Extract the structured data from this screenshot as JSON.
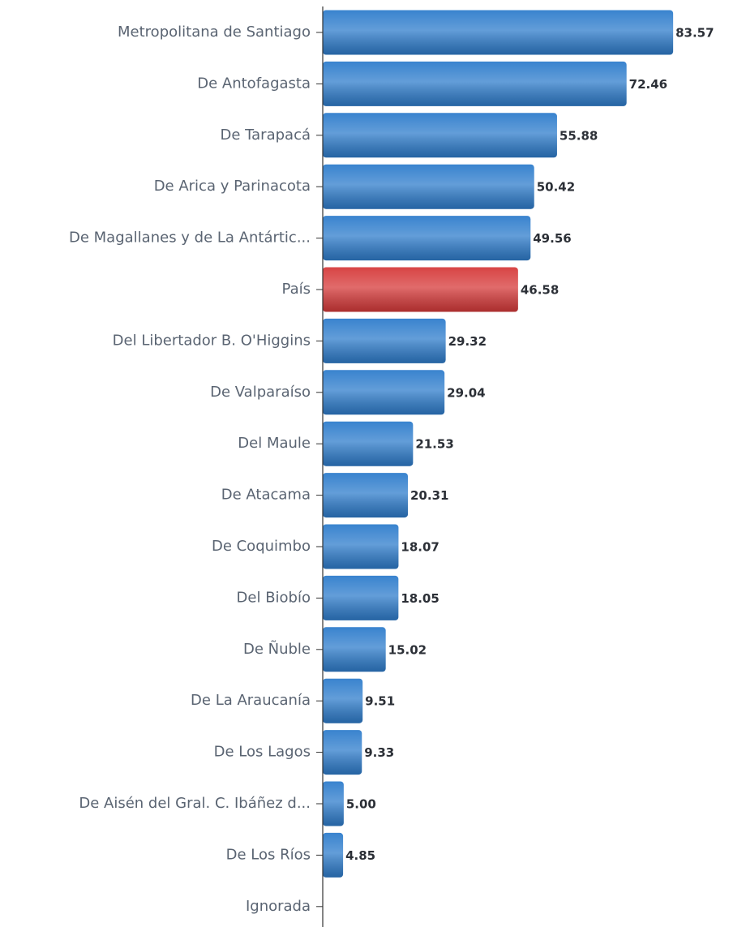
{
  "chart_data": {
    "type": "barh",
    "categories": [
      "Metropolitana de Santiago",
      "De Antofagasta",
      "De Tarapacá",
      "De Arica y Parinacota",
      "De Magallanes y de La Antártic...",
      "País",
      "Del Libertador B. O'Higgins",
      "De Valparaíso",
      "Del Maule",
      "De Atacama",
      "De Coquimbo",
      "Del Biobío",
      "De Ñuble",
      "De La Araucanía",
      "De Los Lagos",
      "De Aisén del Gral. C. Ibáñez d...",
      "De Los Ríos",
      "Ignorada"
    ],
    "values": [
      83.57,
      72.46,
      55.88,
      50.42,
      49.56,
      46.58,
      29.32,
      29.04,
      21.53,
      20.31,
      18.07,
      18.05,
      15.02,
      9.51,
      9.33,
      5,
      4.85,
      null
    ],
    "value_labels": [
      "83.57",
      "72.46",
      "55.88",
      "50.42",
      "49.56",
      "46.58",
      "29.32",
      "29.04",
      "21.53",
      "20.31",
      "18.07",
      "18.05",
      "15.02",
      "9.51",
      "9.33",
      "5.00",
      "4.85",
      null
    ],
    "colors": [
      "#2f7dcc",
      "#2f7dcc",
      "#2f7dcc",
      "#2f7dcc",
      "#2f7dcc",
      "#d63a3a",
      "#2f7dcc",
      "#2f7dcc",
      "#2f7dcc",
      "#2f7dcc",
      "#2f7dcc",
      "#2f7dcc",
      "#2f7dcc",
      "#2f7dcc",
      "#2f7dcc",
      "#2f7dcc",
      "#2f7dcc",
      "#2f7dcc"
    ],
    "xlim": [
      0,
      96.7
    ]
  }
}
